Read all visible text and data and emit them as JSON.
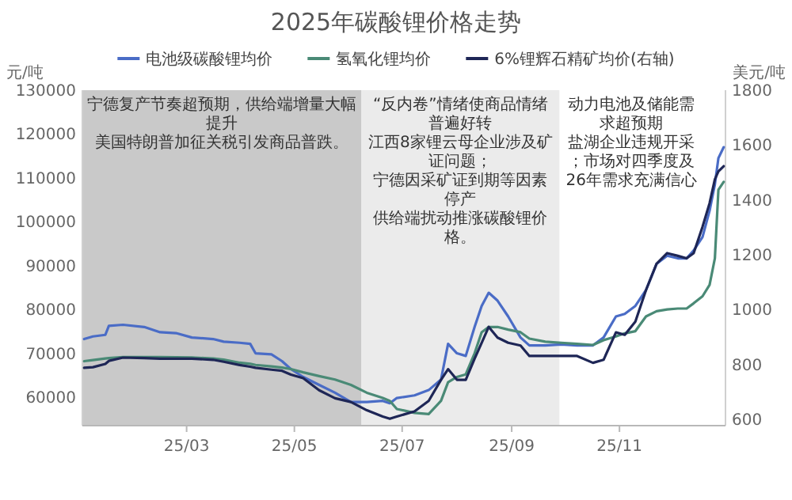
{
  "chart_data": {
    "type": "line",
    "title": "2025年碳酸锂价格走势",
    "ylabel": "元/吨",
    "y2label": "美元/吨",
    "x": [
      "2025-01-02",
      "2025-01-07",
      "2025-01-14",
      "2025-01-16",
      "2025-01-24",
      "2025-02-05",
      "2025-02-14",
      "2025-02-23",
      "2025-03-04",
      "2025-03-16",
      "2025-03-22",
      "2025-03-31",
      "2025-04-06",
      "2025-04-09",
      "2025-04-18",
      "2025-04-24",
      "2025-04-29",
      "2025-05-06",
      "2025-05-15",
      "2025-05-24",
      "2025-06-02",
      "2025-06-11",
      "2025-06-20",
      "2025-06-24",
      "2025-06-28",
      "2025-07-08",
      "2025-07-16",
      "2025-07-23",
      "2025-07-27",
      "2025-08-01",
      "2025-08-06",
      "2025-08-11",
      "2025-08-15",
      "2025-08-19",
      "2025-08-24",
      "2025-08-30",
      "2025-09-06",
      "2025-09-11",
      "2025-09-20",
      "2025-09-29",
      "2025-10-08",
      "2025-10-17",
      "2025-10-23",
      "2025-10-30",
      "2025-11-04",
      "2025-11-10",
      "2025-11-16",
      "2025-11-22",
      "2025-11-28",
      "2025-12-04",
      "2025-12-09",
      "2025-12-13",
      "2025-12-18",
      "2025-12-22",
      "2025-12-25",
      "2025-12-27",
      "2025-12-30"
    ],
    "series": [
      {
        "name": "电池级碳酸锂均价",
        "color": "#4a6cc6",
        "values": [
          73250,
          73850,
          74200,
          76250,
          76500,
          76000,
          74800,
          74600,
          73600,
          73250,
          72650,
          72400,
          72150,
          70000,
          69750,
          68200,
          66400,
          64600,
          62800,
          61000,
          58900,
          58900,
          59150,
          58600,
          59800,
          60400,
          61600,
          64000,
          72150,
          70000,
          69400,
          76000,
          80800,
          83800,
          82000,
          78400,
          73600,
          71800,
          71800,
          72000,
          71800,
          71800,
          73600,
          78400,
          79000,
          80800,
          84400,
          90400,
          92250,
          91650,
          91650,
          93450,
          96500,
          102500,
          108500,
          114500,
          117000
        ]
      },
      {
        "name": "氢氧化锂均价",
        "color": "#4a8a76",
        "values": [
          68200,
          68450,
          68800,
          68900,
          69150,
          69150,
          69150,
          69100,
          69050,
          68800,
          68550,
          67850,
          67600,
          67350,
          67000,
          66750,
          66400,
          65650,
          64800,
          64000,
          62800,
          61000,
          59800,
          59150,
          57300,
          56400,
          56150,
          59150,
          63400,
          64600,
          65200,
          70000,
          74800,
          76000,
          76000,
          75400,
          74800,
          73350,
          72650,
          72400,
          72150,
          71900,
          73000,
          73850,
          74550,
          75050,
          78400,
          79600,
          80000,
          80200,
          80200,
          81400,
          83000,
          85600,
          91650,
          107300,
          109100
        ]
      },
      {
        "name": "6%锂辉石精矿均价(右轴)",
        "color": "#1e2656",
        "axis": "y2",
        "values": [
          788,
          790,
          802,
          813,
          825,
          823,
          821,
          821,
          821,
          817,
          810,
          798,
          792,
          788,
          781,
          777,
          763,
          750,
          706,
          677,
          663,
          633,
          610,
          602,
          610,
          629,
          667,
          744,
          783,
          744,
          744,
          821,
          879,
          937,
          898,
          879,
          869,
          831,
          831,
          831,
          831,
          806,
          817,
          917,
          908,
          956,
          1071,
          1167,
          1206,
          1196,
          1187,
          1206,
          1302,
          1388,
          1475,
          1504,
          1523
        ]
      }
    ],
    "xlim": [
      "2025-01-01",
      "2025-12-31"
    ],
    "xticks": [
      {
        "value": "2025-03-01",
        "label": "25/03"
      },
      {
        "value": "2025-05-01",
        "label": "25/05"
      },
      {
        "value": "2025-07-01",
        "label": "25/07"
      },
      {
        "value": "2025-09-01",
        "label": "25/09"
      },
      {
        "value": "2025-11-01",
        "label": "25/11"
      }
    ],
    "ylim": [
      53500,
      130000
    ],
    "yticks": [
      60000,
      70000,
      80000,
      90000,
      100000,
      110000,
      120000,
      130000
    ],
    "y2lim": [
      577,
      1800
    ],
    "y2ticks": [
      600,
      800,
      1000,
      1200,
      1400,
      1600,
      1800
    ],
    "bands": [
      {
        "axis": "x",
        "from": "2025-01-01",
        "to": "2025-06-08",
        "color": "#c9c9c9"
      },
      {
        "axis": "x",
        "from": "2025-06-08",
        "to": "2025-09-28",
        "color": "#ebebeb"
      }
    ],
    "annotations": [
      "宁德复产节奏超预期，供给端增量大幅提升",
      "美国特朗普加征关税引发商品普跌。",
      "“反内卷”情绪使商品情绪普遍好转",
      "江西8家锂云母企业涉及矿证问题；",
      "宁德因采矿证到期等因素停产",
      "供给端扰动推涨碳酸锂价格。",
      "动力电池及储能需求超预期",
      "盐湖企业违规开采；市场对四季度及26年需求充满信心"
    ],
    "legend": "top"
  }
}
